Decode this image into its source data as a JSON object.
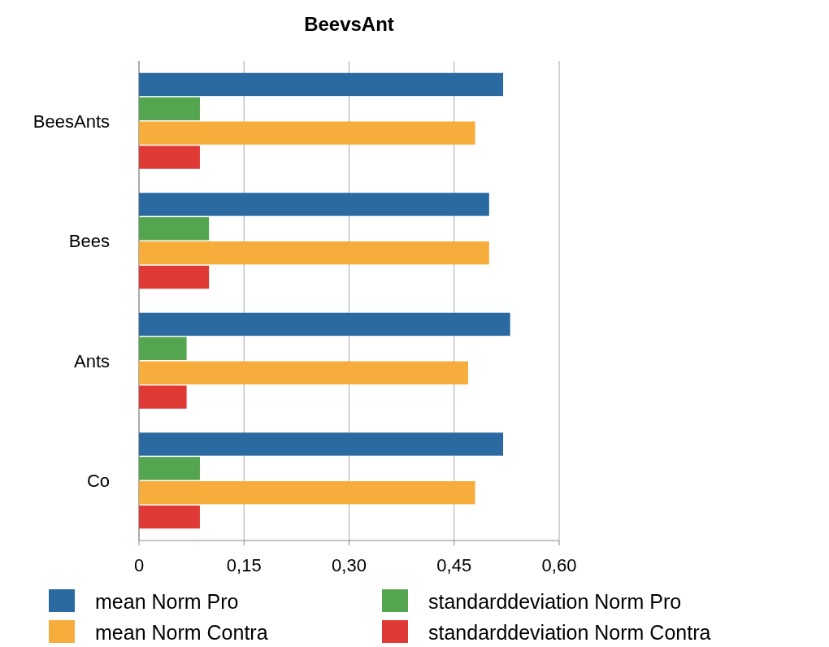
{
  "chart_data": {
    "type": "bar",
    "title": "BeevsAnt",
    "orientation": "horizontal",
    "categories": [
      "BeesAnts",
      "Bees",
      "Ants",
      "Co"
    ],
    "series": [
      {
        "name": "mean Norm Pro",
        "color": "#2a6aa0",
        "values": [
          0.52,
          0.5,
          0.53,
          0.52
        ]
      },
      {
        "name": "standarddeviation Norm Pro",
        "color": "#53a64f",
        "values": [
          0.087,
          0.1,
          0.068,
          0.087
        ]
      },
      {
        "name": "mean Norm Contra",
        "color": "#f7ad3c",
        "values": [
          0.48,
          0.5,
          0.47,
          0.48
        ]
      },
      {
        "name": "standarddeviation Norm Contra",
        "color": "#e03a36",
        "values": [
          0.087,
          0.1,
          0.068,
          0.087
        ]
      }
    ],
    "xlim": [
      0,
      0.6
    ],
    "xticks": [
      0,
      {
        "value": 0.15,
        "label": "0,15"
      },
      {
        "value": 0.3,
        "label": "0,30"
      },
      {
        "value": 0.45,
        "label": "0,45"
      },
      {
        "value": 0.6,
        "label": "0,60"
      }
    ],
    "grid": "x",
    "legend": "bottom"
  }
}
